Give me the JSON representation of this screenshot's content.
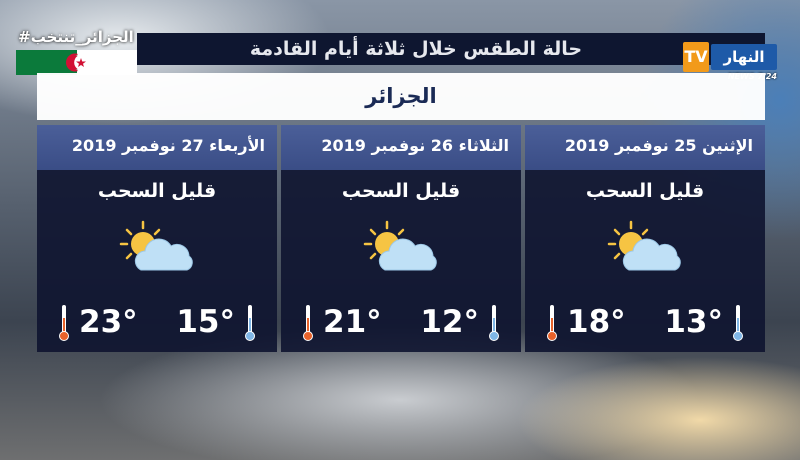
{
  "hashtag": "#الجزائر_تنتخب",
  "title": "حالة الطقس خلال ثلاثة أيام القادمة",
  "logo": {
    "tv": "TV",
    "name": "النهار",
    "news": "NEWS 7/24"
  },
  "city": "الجزائر",
  "days": [
    {
      "date": "الأربعاء 27 نوفمبر 2019",
      "condition": "قليل السحب",
      "icon": "partly-cloudy-icon",
      "max": "23°",
      "min": "15°"
    },
    {
      "date": "الثلاثاء 26 نوفمبر 2019",
      "condition": "قليل السحب",
      "icon": "partly-cloudy-icon",
      "max": "21°",
      "min": "12°"
    },
    {
      "date": "الإثنين 25 نوفمبر 2019",
      "condition": "قليل السحب",
      "icon": "partly-cloudy-icon",
      "max": "18°",
      "min": "13°"
    }
  ],
  "colors": {
    "bar": "#0e1630",
    "header": "#4b5f99",
    "hot": "#e8622a",
    "cold": "#7fb6e6",
    "sun": "#f6c443",
    "cloud": "#bfe0f6"
  }
}
